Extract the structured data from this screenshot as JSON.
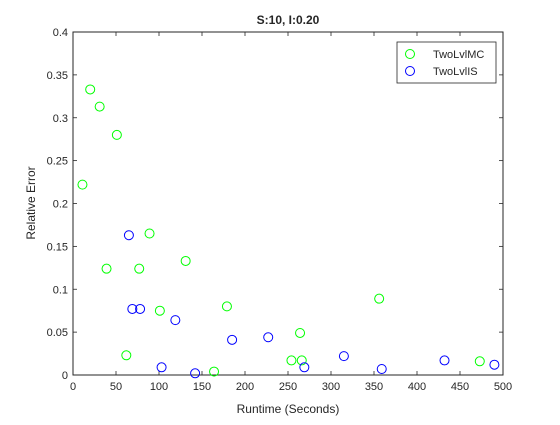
{
  "chart_data": {
    "type": "scatter",
    "title": "S:10, I:0.20",
    "xlabel": "Runtime (Seconds)",
    "ylabel": "Relative Error",
    "xlim": [
      0,
      500
    ],
    "ylim": [
      0,
      0.4
    ],
    "xticks": [
      "0",
      "50",
      "100",
      "150",
      "200",
      "250",
      "300",
      "350",
      "400",
      "450",
      "500"
    ],
    "yticks": [
      "0",
      "0.05",
      "0.1",
      "0.15",
      "0.2",
      "0.25",
      "0.3",
      "0.35",
      "0.4"
    ],
    "grid": false,
    "legend_position": "top-right",
    "series": [
      {
        "name": "TwoLvlMC",
        "color": "#00ff00",
        "marker": "circle-open",
        "points": [
          [
            11,
            0.222
          ],
          [
            20,
            0.333
          ],
          [
            31,
            0.313
          ],
          [
            39,
            0.124
          ],
          [
            51,
            0.28
          ],
          [
            62,
            0.023
          ],
          [
            77,
            0.124
          ],
          [
            89,
            0.165
          ],
          [
            101,
            0.075
          ],
          [
            131,
            0.133
          ],
          [
            164,
            0.004
          ],
          [
            179,
            0.08
          ],
          [
            254,
            0.017
          ],
          [
            264,
            0.049
          ],
          [
            266,
            0.017
          ],
          [
            356,
            0.089
          ],
          [
            473,
            0.016
          ]
        ]
      },
      {
        "name": "TwoLvlIS",
        "color": "#0000ff",
        "marker": "circle-open",
        "points": [
          [
            65,
            0.163
          ],
          [
            69,
            0.077
          ],
          [
            78,
            0.077
          ],
          [
            103,
            0.009
          ],
          [
            119,
            0.064
          ],
          [
            142,
            0.002
          ],
          [
            185,
            0.041
          ],
          [
            227,
            0.044
          ],
          [
            269,
            0.009
          ],
          [
            315,
            0.022
          ],
          [
            359,
            0.007
          ],
          [
            432,
            0.017
          ],
          [
            490,
            0.012
          ]
        ]
      }
    ]
  }
}
